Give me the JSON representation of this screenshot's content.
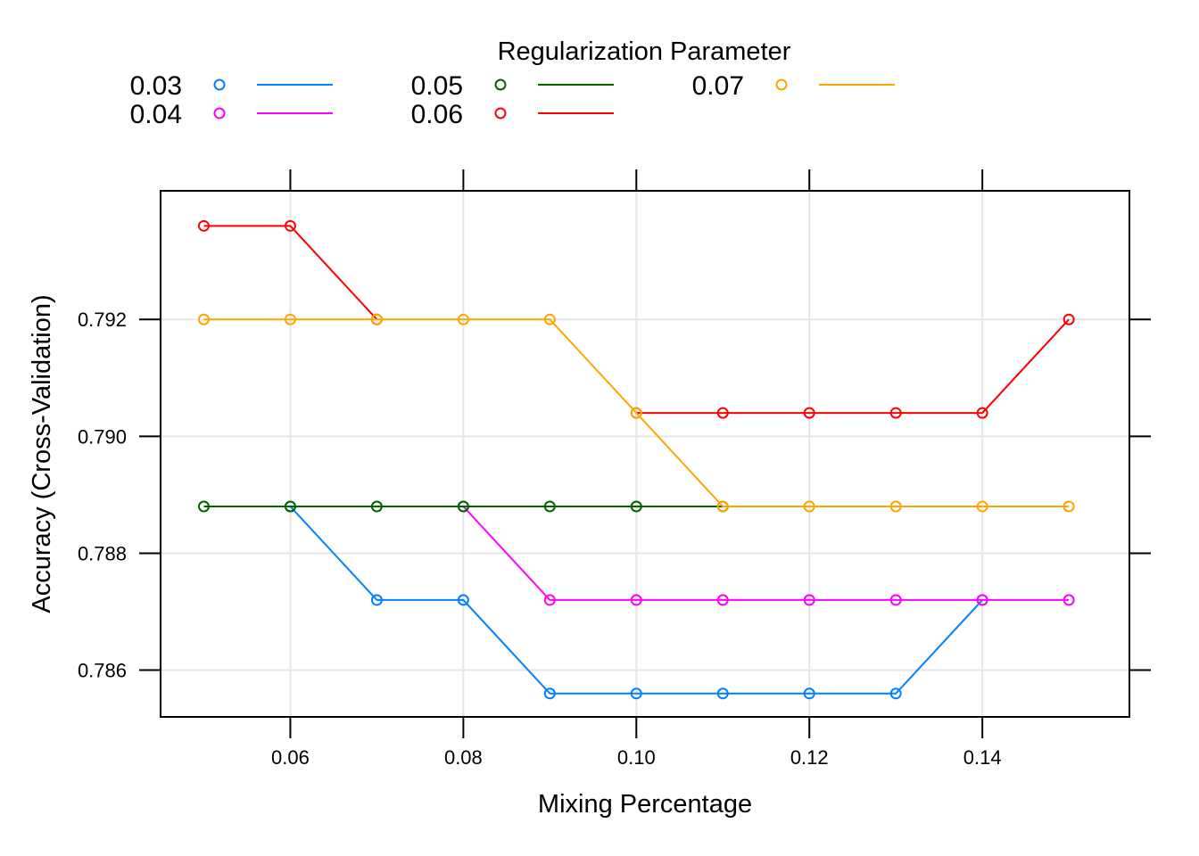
{
  "chart_data": {
    "type": "line",
    "title": "",
    "xlabel": "Mixing Percentage",
    "ylabel": "Accuracy (Cross-Validation)",
    "legend_title": "Regularization Parameter",
    "legend_placement": "top",
    "grid": true,
    "xlim": [
      0.045,
      0.157
    ],
    "ylim": [
      0.7852,
      0.7942
    ],
    "x_ticks": [
      "0.06",
      "0.08",
      "0.10",
      "0.12",
      "0.14"
    ],
    "y_ticks": [
      "0.786",
      "0.788",
      "0.790",
      "0.792"
    ],
    "x": [
      0.05,
      0.06,
      0.07,
      0.08,
      0.09,
      0.1,
      0.11,
      0.12,
      0.13,
      0.14,
      0.15
    ],
    "series": [
      {
        "name": "0.03",
        "color": "#0080ff",
        "values": [
          null,
          0.7888,
          0.7872,
          0.7872,
          0.7856,
          0.7856,
          0.7856,
          0.7856,
          0.7856,
          0.7872,
          null
        ]
      },
      {
        "name": "0.04",
        "color": "#ff00ff",
        "values": [
          null,
          null,
          null,
          0.7888,
          0.7872,
          0.7872,
          0.7872,
          0.7872,
          0.7872,
          0.7872,
          0.7872
        ]
      },
      {
        "name": "0.05",
        "color": "#006400",
        "values": [
          0.7888,
          0.7888,
          0.7888,
          0.7888,
          0.7888,
          0.7888,
          0.7888,
          null,
          null,
          null,
          null
        ]
      },
      {
        "name": "0.06",
        "color": "#ff0000",
        "values": [
          0.7936,
          0.7936,
          0.792,
          null,
          null,
          0.7904,
          0.7904,
          0.7904,
          0.7904,
          0.7904,
          0.792
        ]
      },
      {
        "name": "0.07",
        "color": "#ffa500",
        "values": [
          0.792,
          0.792,
          0.792,
          0.792,
          0.792,
          0.7904,
          0.7888,
          0.7888,
          0.7888,
          0.7888,
          0.7888
        ]
      }
    ]
  }
}
